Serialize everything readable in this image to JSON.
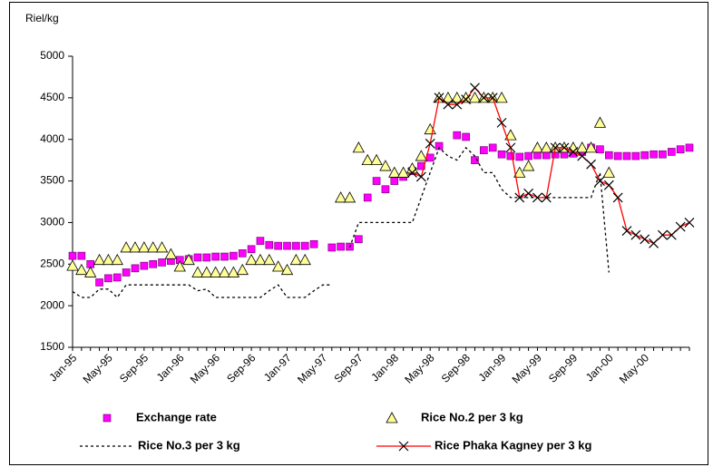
{
  "chart_data": {
    "type": "line",
    "y_axis_label": "Riel/kg",
    "categories": [
      "Jan-95",
      null,
      null,
      null,
      "May-95",
      null,
      null,
      null,
      "Sep-95",
      null,
      null,
      null,
      "Jan-96",
      null,
      null,
      null,
      "May-96",
      null,
      null,
      null,
      "Sep-96",
      null,
      null,
      null,
      "Jan-97",
      null,
      null,
      null,
      "May-97",
      null,
      null,
      null,
      "Sep-97",
      null,
      null,
      null,
      "Jan-98",
      null,
      null,
      null,
      "May-98",
      null,
      null,
      null,
      "Sep-98",
      null,
      null,
      null,
      "Jan-99",
      null,
      null,
      null,
      "May-99",
      null,
      null,
      null,
      "Sep-99",
      null,
      null,
      null,
      "Jan-00",
      null,
      null,
      null,
      "May-00",
      null,
      null,
      null,
      null,
      null
    ],
    "ylim": [
      1500,
      5000
    ],
    "yticks": [
      1500,
      2000,
      2500,
      3000,
      3500,
      4000,
      4500,
      5000
    ],
    "grid": false,
    "legend": "bottom",
    "series": [
      {
        "name": "Exchange rate",
        "color": "#ff00ff",
        "marker": "square",
        "line": "none",
        "values": [
          2600,
          2600,
          2500,
          2280,
          2330,
          2340,
          2400,
          2450,
          2480,
          2500,
          2520,
          2540,
          2550,
          2560,
          2580,
          2580,
          2590,
          2590,
          2600,
          2630,
          2680,
          2780,
          2730,
          2720,
          2720,
          2720,
          2720,
          2740,
          null,
          2700,
          2710,
          2710,
          2800,
          3300,
          3500,
          3400,
          3500,
          3550,
          3620,
          3680,
          3780,
          3920,
          null,
          4050,
          4030,
          3750,
          3870,
          3900,
          3820,
          3800,
          3790,
          3800,
          3810,
          3810,
          3820,
          3820,
          3830,
          3850,
          3900,
          3880,
          3810,
          3800,
          3800,
          3800,
          3810,
          3820,
          3820,
          3850,
          3880,
          3900
        ]
      },
      {
        "name": "Rice No.2 per 3 kg",
        "color": "#ffff99",
        "marker": "triangle",
        "line": "none",
        "values": [
          2480,
          2430,
          2400,
          2550,
          2550,
          2550,
          2700,
          2700,
          2700,
          2700,
          2700,
          2620,
          2470,
          2550,
          2400,
          2400,
          2400,
          2400,
          2400,
          2430,
          2550,
          2550,
          2550,
          2470,
          2430,
          2550,
          2550,
          null,
          null,
          null,
          3300,
          3300,
          3900,
          3750,
          3750,
          3680,
          3600,
          3600,
          3650,
          3800,
          4120,
          4500,
          4500,
          4500,
          4500,
          4500,
          4500,
          4500,
          4500,
          4050,
          3600,
          3680,
          3900,
          3900,
          3900,
          3900,
          3900,
          3900,
          3900,
          4200,
          3600,
          null,
          null,
          null,
          null,
          null,
          null,
          null,
          null,
          null
        ]
      },
      {
        "name": "Rice No.3 per 3 kg",
        "color": "#000000",
        "marker": "none",
        "line": "dashed",
        "values": [
          2170,
          2100,
          2100,
          2200,
          2200,
          2100,
          2250,
          2250,
          2250,
          2250,
          2250,
          2250,
          2250,
          2250,
          2180,
          2200,
          2100,
          2100,
          2100,
          2100,
          2100,
          2100,
          2180,
          2250,
          2100,
          2100,
          2100,
          2180,
          2250,
          2250,
          null,
          2700,
          3000,
          3000,
          3000,
          3000,
          3000,
          3000,
          3000,
          3300,
          3600,
          3900,
          3800,
          3750,
          3900,
          3800,
          3600,
          3600,
          3400,
          3300,
          3300,
          3300,
          3300,
          3300,
          3300,
          3300,
          3300,
          3300,
          3300,
          3600,
          2400,
          null,
          null,
          null,
          null,
          null,
          null,
          null,
          null,
          null
        ]
      },
      {
        "name": "Rice Phaka Kagney per 3 kg",
        "color": "#ff0000",
        "marker": "x",
        "line": "solid",
        "values": [
          null,
          null,
          null,
          null,
          null,
          null,
          null,
          null,
          null,
          null,
          null,
          null,
          null,
          null,
          null,
          null,
          null,
          null,
          null,
          null,
          null,
          null,
          null,
          null,
          null,
          null,
          null,
          null,
          null,
          null,
          null,
          null,
          null,
          null,
          null,
          null,
          null,
          null,
          3600,
          3550,
          3950,
          4500,
          4420,
          4420,
          4480,
          4620,
          4500,
          4500,
          4200,
          3900,
          3300,
          3350,
          3300,
          3300,
          3900,
          3900,
          3850,
          3800,
          3700,
          3500,
          3450,
          3300,
          2900,
          2850,
          2800,
          2750,
          2850,
          2850,
          2950,
          3000
        ]
      }
    ]
  }
}
